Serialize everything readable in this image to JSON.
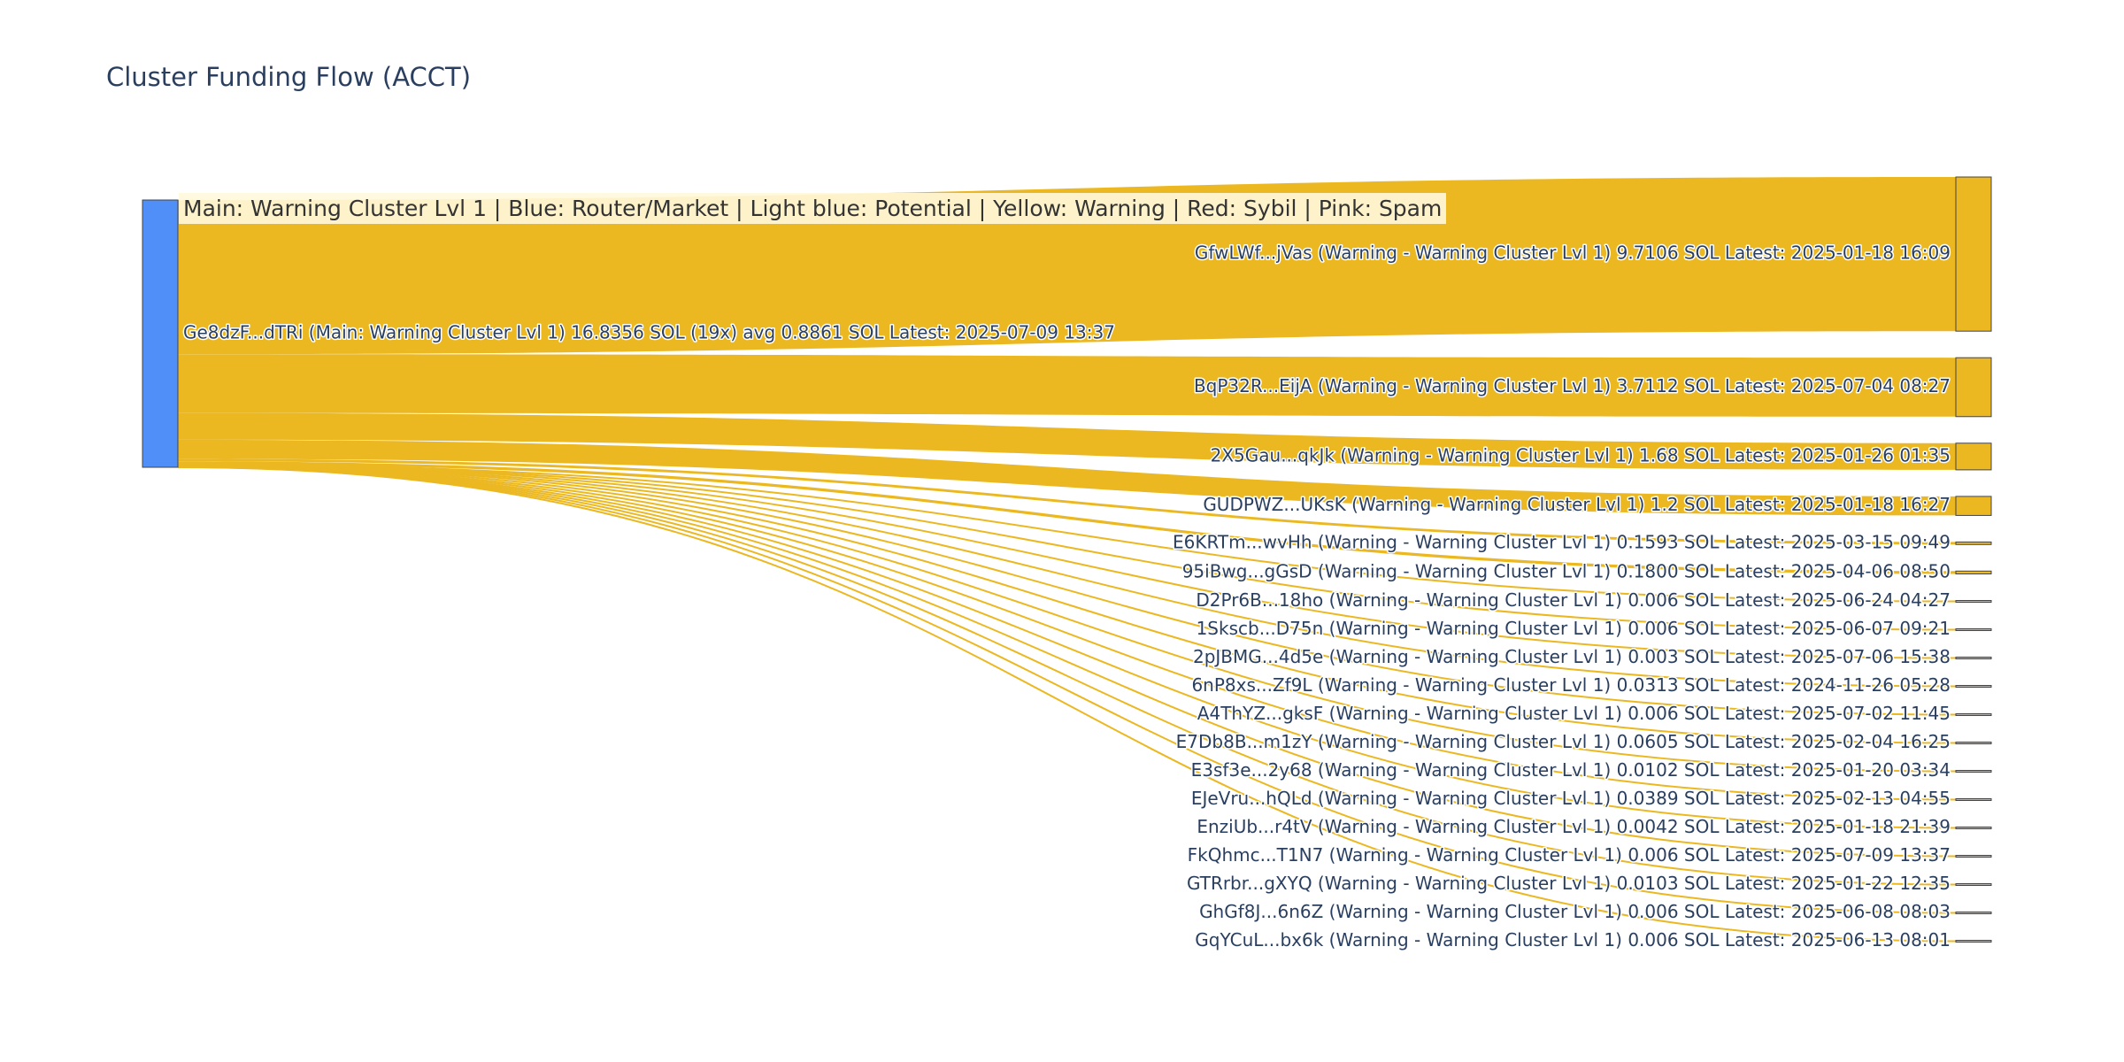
{
  "title": "Cluster Funding Flow (ACCT)",
  "legend_note": "Main: Warning Cluster Lvl 1  |  Blue: Router/Market | Light blue: Potential | Yellow: Warning | Red: Sybil | Pink: Spam",
  "colors": {
    "source_node": "#4f8ff7",
    "warning": "#ebb822",
    "node_border": "#444444",
    "text": "#2a3f5f"
  },
  "chart_data": {
    "type": "sankey",
    "title": "Cluster Funding Flow (ACCT)",
    "source": {
      "label": "Ge8dzF...dTRi (Main: Warning Cluster Lvl 1) 16.8356 SOL (19x) avg 0.8861 SOL Latest: 2025-07-09 13:37",
      "total": 16.8356,
      "color": "#4f8ff7"
    },
    "targets": [
      {
        "label": "GfwLWf...jVas (Warning - Warning Cluster Lvl 1) 9.7106 SOL Latest: 2025-01-18 16:09",
        "value": 9.7106
      },
      {
        "label": "BqP32R...EijA (Warning - Warning Cluster Lvl 1) 3.7112 SOL Latest: 2025-07-04 08:27",
        "value": 3.7112
      },
      {
        "label": "2X5Gau...qkJk (Warning - Warning Cluster Lvl 1) 1.68 SOL Latest: 2025-01-26 01:35",
        "value": 1.68
      },
      {
        "label": "GUDPWZ...UKsK (Warning - Warning Cluster Lvl 1) 1.2 SOL Latest: 2025-01-18 16:27",
        "value": 1.2
      },
      {
        "label": "E6KRTm...wvHh (Warning - Warning Cluster Lvl 1) 0.1593 SOL Latest: 2025-03-15 09:49",
        "value": 0.1593
      },
      {
        "label": "95iBwg...gGsD (Warning - Warning Cluster Lvl 1) 0.1800 SOL Latest: 2025-04-06 08:50",
        "value": 0.18
      },
      {
        "label": "D2Pr6B...18ho (Warning - Warning Cluster Lvl 1) 0.006 SOL Latest: 2025-06-24 04:27",
        "value": 0.006
      },
      {
        "label": "1Skscb...D75n (Warning - Warning Cluster Lvl 1) 0.006 SOL Latest: 2025-06-07 09:21",
        "value": 0.006
      },
      {
        "label": "2pJBMG...4d5e (Warning - Warning Cluster Lvl 1) 0.003 SOL Latest: 2025-07-06 15:38",
        "value": 0.003
      },
      {
        "label": "6nP8xs...Zf9L (Warning - Warning Cluster Lvl 1) 0.0313 SOL Latest: 2024-11-26 05:28",
        "value": 0.0313
      },
      {
        "label": "A4ThYZ...gksF (Warning - Warning Cluster Lvl 1) 0.006 SOL Latest: 2025-07-02 11:45",
        "value": 0.006
      },
      {
        "label": "E7Db8B...m1zY (Warning - Warning Cluster Lvl 1) 0.0605 SOL Latest: 2025-02-04 16:25",
        "value": 0.0605
      },
      {
        "label": "E3sf3e...2y68 (Warning - Warning Cluster Lvl 1) 0.0102 SOL Latest: 2025-01-20 03:34",
        "value": 0.0102
      },
      {
        "label": "EJeVru...hQLd (Warning - Warning Cluster Lvl 1) 0.0389 SOL Latest: 2025-02-13 04:55",
        "value": 0.0389
      },
      {
        "label": "EnziUb...r4tV (Warning - Warning Cluster Lvl 1) 0.0042 SOL Latest: 2025-01-18 21:39",
        "value": 0.0042
      },
      {
        "label": "FkQhmc...T1N7 (Warning - Warning Cluster Lvl 1) 0.006 SOL Latest: 2025-07-09 13:37",
        "value": 0.006
      },
      {
        "label": "GTRrbr...gXYQ (Warning - Warning Cluster Lvl 1) 0.0103 SOL Latest: 2025-01-22 12:35",
        "value": 0.0103
      },
      {
        "label": "GhGf8J...6n6Z (Warning - Warning Cluster Lvl 1) 0.006 SOL Latest: 2025-06-08 08:03",
        "value": 0.006
      },
      {
        "label": "GqYCuL...bx6k (Warning - Warning Cluster Lvl 1) 0.006 SOL Latest: 2025-06-13 08:01",
        "value": 0.006
      }
    ]
  }
}
